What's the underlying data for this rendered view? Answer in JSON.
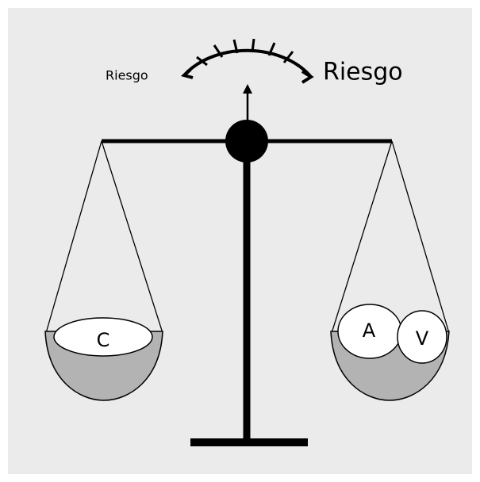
{
  "gauge": {
    "left_label": "Riesgo",
    "right_label": "Riesgo"
  },
  "left_pan": {
    "items": [
      "C"
    ]
  },
  "right_pan": {
    "items": [
      "A",
      "V"
    ]
  }
}
